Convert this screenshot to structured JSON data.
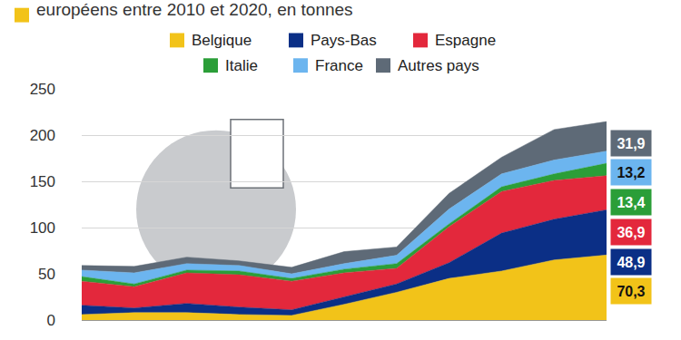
{
  "chart_data": {
    "type": "area",
    "title": "européens entre 2010 et 2020, en tonnes",
    "categories": [
      null,
      null,
      null,
      null,
      null,
      null,
      null,
      null,
      null,
      null,
      null
    ],
    "series": [
      {
        "name": "Belgique",
        "color": "#f2c319",
        "values": [
          6,
          8,
          8,
          6,
          5,
          17,
          30,
          45,
          53,
          65,
          70.3
        ],
        "value_labels": [
          null,
          null,
          null,
          null,
          null,
          null,
          null,
          null,
          null,
          null,
          "70,3"
        ]
      },
      {
        "name": "Pays-Bas",
        "color": "#0b2f86",
        "values": [
          10,
          5,
          10,
          8,
          6,
          8,
          9,
          17,
          41,
          44,
          48.9
        ],
        "value_labels": [
          null,
          null,
          null,
          null,
          null,
          null,
          null,
          null,
          null,
          null,
          "48,9"
        ]
      },
      {
        "name": "Espagne",
        "color": "#e3283c",
        "values": [
          26,
          23,
          33,
          35,
          31,
          26,
          17,
          39,
          45,
          42,
          36.9
        ],
        "value_labels": [
          null,
          null,
          null,
          null,
          null,
          null,
          null,
          null,
          null,
          null,
          "36,9"
        ]
      },
      {
        "name": "Italie",
        "color": "#2b9e38",
        "values": [
          5,
          3,
          3,
          4,
          3,
          4,
          5,
          3,
          5,
          7,
          13.4
        ],
        "value_labels": [
          null,
          null,
          null,
          null,
          null,
          null,
          null,
          null,
          null,
          null,
          "13,4"
        ]
      },
      {
        "name": "France",
        "color": "#6cb5ef",
        "values": [
          7,
          12,
          7,
          6,
          5,
          6,
          9,
          16,
          14,
          15,
          13.2
        ],
        "value_labels": [
          null,
          null,
          null,
          null,
          null,
          null,
          null,
          null,
          null,
          null,
          "13,2"
        ]
      },
      {
        "name": "Autres pays",
        "color": "#5e6a77",
        "values": [
          5,
          7,
          7,
          5,
          7,
          13,
          9,
          17,
          18,
          33,
          31.9
        ],
        "value_labels": [
          null,
          null,
          null,
          null,
          null,
          null,
          null,
          null,
          null,
          null,
          "31,9"
        ]
      }
    ],
    "ylim": [
      0,
      250
    ],
    "yticks": [
      0,
      50,
      100,
      150,
      200,
      250
    ],
    "grid": true,
    "stacked": true,
    "data_labels": true,
    "legend": "top",
    "tick_labels": "y"
  }
}
